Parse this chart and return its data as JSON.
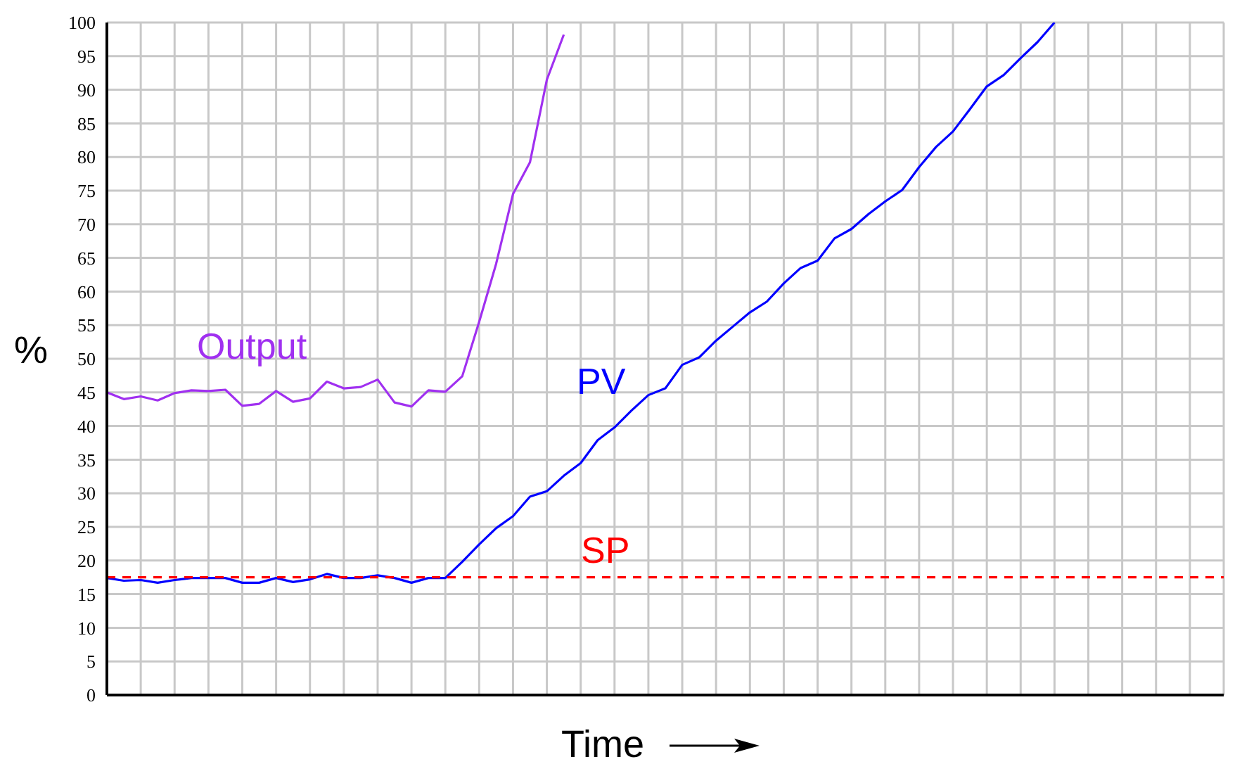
{
  "chart_data": {
    "type": "line",
    "xlabel": "Time",
    "ylabel": "%",
    "categories": [
      null,
      null,
      null,
      null,
      null,
      null,
      null,
      null,
      null,
      null,
      null,
      null,
      null,
      null,
      null,
      null,
      null,
      null,
      null,
      null,
      null,
      null,
      null,
      null,
      null,
      null,
      null,
      null,
      null,
      null,
      null,
      null,
      null,
      null,
      null,
      null,
      null,
      null,
      null,
      null,
      null,
      null,
      null,
      null,
      null,
      null,
      null,
      null,
      null,
      null,
      null,
      null,
      null,
      null,
      null,
      null,
      null,
      null,
      null,
      null,
      null,
      null,
      null,
      null,
      null,
      null,
      null
    ],
    "ylim": [
      0,
      100
    ],
    "yticks": [
      0,
      5,
      10,
      15,
      20,
      25,
      30,
      35,
      40,
      45,
      50,
      55,
      60,
      65,
      70,
      75,
      80,
      85,
      90,
      95,
      100
    ],
    "grid": true,
    "marker": "none",
    "series": [
      {
        "name": "Output",
        "color": "#a030f0",
        "line_style": "solid",
        "values": [
          45.0,
          44.0,
          44.4,
          43.8,
          44.9,
          45.3,
          45.2,
          45.4,
          43.0,
          43.3,
          45.2,
          43.6,
          44.1,
          46.6,
          45.6,
          45.8,
          46.9,
          43.5,
          42.9,
          45.3,
          45.1,
          47.4,
          55.5,
          64.1,
          74.5,
          79.2,
          91.5,
          98.2,
          null,
          null,
          null,
          null,
          null,
          null,
          null,
          null,
          null,
          null,
          null,
          null,
          null,
          null,
          null,
          null,
          null,
          null,
          null,
          null,
          null,
          null,
          null,
          null,
          null,
          null,
          null,
          null,
          null,
          null,
          null,
          null,
          null,
          null,
          null,
          null,
          null,
          null,
          null
        ]
      },
      {
        "name": "PV",
        "color": "#0000ff",
        "line_style": "solid",
        "values": [
          17.4,
          17.0,
          17.1,
          16.7,
          17.1,
          17.4,
          17.4,
          17.4,
          16.7,
          16.7,
          17.4,
          16.8,
          17.2,
          18.0,
          17.4,
          17.4,
          17.8,
          17.4,
          16.7,
          17.4,
          17.4,
          19.8,
          22.4,
          24.8,
          26.6,
          29.5,
          30.3,
          32.6,
          34.5,
          37.9,
          39.8,
          42.3,
          44.6,
          45.6,
          49.1,
          50.2,
          52.7,
          54.8,
          56.9,
          58.5,
          61.2,
          63.5,
          64.6,
          67.9,
          69.3,
          71.5,
          73.4,
          75.1,
          78.5,
          81.5,
          83.8,
          87.1,
          90.5,
          92.2,
          94.7,
          97.1,
          100,
          null,
          null,
          null,
          null,
          null,
          null,
          null,
          null,
          null,
          null
        ]
      },
      {
        "name": "SP",
        "color": "#ff0000",
        "line_style": "dashed",
        "values": [
          17.5,
          17.5,
          17.5,
          17.5,
          17.5,
          17.5,
          17.5,
          17.5,
          17.5,
          17.5,
          17.5,
          17.5,
          17.5,
          17.5,
          17.5,
          17.5,
          17.5,
          17.5,
          17.5,
          17.5,
          17.5,
          17.5,
          17.5,
          17.5,
          17.5,
          17.5,
          17.5,
          17.5,
          17.5,
          17.5,
          17.5,
          17.5,
          17.5,
          17.5,
          17.5,
          17.5,
          17.5,
          17.5,
          17.5,
          17.5,
          17.5,
          17.5,
          17.5,
          17.5,
          17.5,
          17.5,
          17.5,
          17.5,
          17.5,
          17.5,
          17.5,
          17.5,
          17.5,
          17.5,
          17.5,
          17.5,
          17.5,
          17.5,
          17.5,
          17.5,
          17.5,
          17.5,
          17.5,
          17.5,
          17.5,
          17.5,
          17.5
        ]
      }
    ]
  }
}
